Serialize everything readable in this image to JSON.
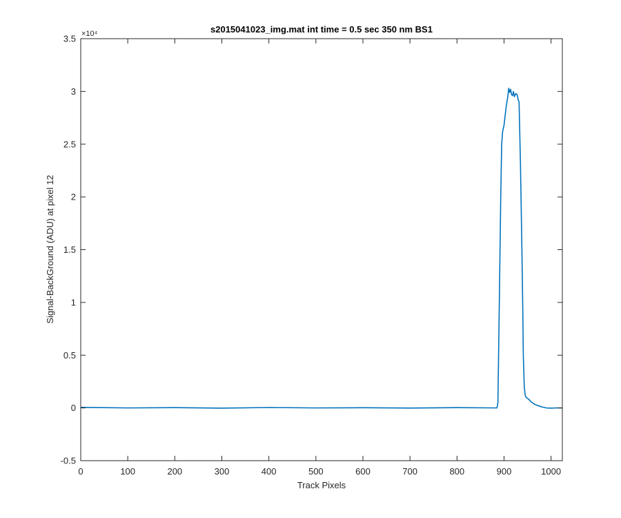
{
  "chart_data": {
    "type": "line",
    "title": "s2015041023_img.mat int time = 0.5 sec  350 nm BS1",
    "xlabel": "Track Pixels",
    "ylabel": "Signal-BackGround (ADU) at pixel 12",
    "xlim": [
      0,
      1024
    ],
    "ylim": [
      -5000,
      35000
    ],
    "x_ticks": [
      0,
      100,
      200,
      300,
      400,
      500,
      600,
      700,
      800,
      900,
      1000
    ],
    "x_tick_labels": [
      "0",
      "100",
      "200",
      "300",
      "400",
      "500",
      "600",
      "700",
      "800",
      "900",
      "1000"
    ],
    "y_ticks": [
      -5000,
      0,
      5000,
      10000,
      15000,
      20000,
      25000,
      30000,
      35000
    ],
    "y_tick_labels": [
      "-0.5",
      "0",
      "0.5",
      "1",
      "1.5",
      "2",
      "2.5",
      "3",
      "3.5"
    ],
    "y_exponent_label": "×10⁴",
    "grid": false,
    "line_color": "#0072bd",
    "series": [
      {
        "x": [
          0,
          100,
          200,
          300,
          400,
          500,
          600,
          700,
          800,
          885,
          887,
          890,
          893,
          895,
          897,
          900,
          902,
          905,
          908,
          910,
          912,
          914,
          916,
          918,
          920,
          922,
          925,
          928,
          930,
          932,
          935,
          938,
          940,
          941,
          943,
          945,
          947,
          950,
          953,
          955,
          957,
          960,
          965,
          970,
          980,
          990,
          1000,
          1010,
          1020,
          1024
        ],
        "y": [
          50,
          0,
          30,
          -20,
          40,
          0,
          20,
          -10,
          30,
          0,
          500,
          10000,
          20000,
          25000,
          26200,
          26800,
          27600,
          28700,
          29500,
          30300,
          29900,
          30200,
          29700,
          29600,
          30000,
          29500,
          29800,
          29700,
          29200,
          29000,
          23000,
          15000,
          9000,
          5000,
          2000,
          1200,
          1000,
          900,
          800,
          700,
          600,
          500,
          350,
          250,
          100,
          0,
          -20,
          0,
          0,
          0
        ]
      }
    ]
  }
}
